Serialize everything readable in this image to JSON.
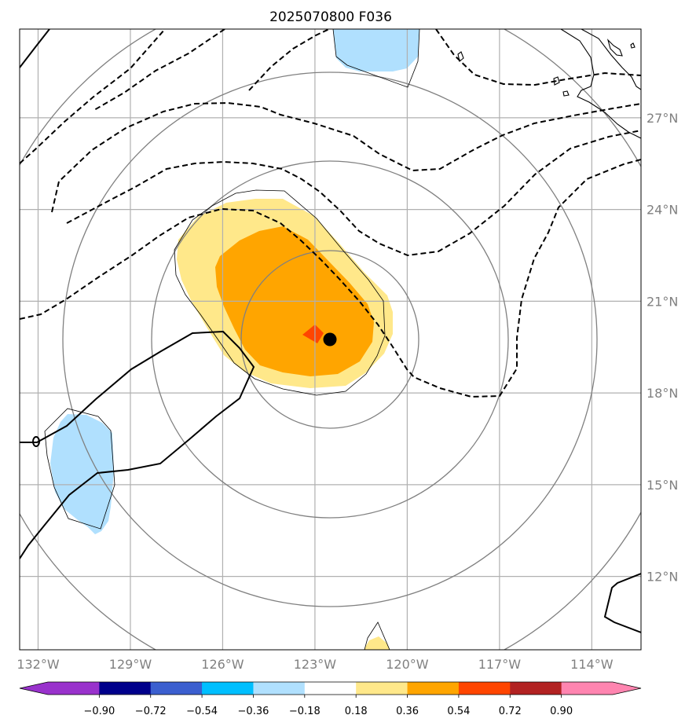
{
  "title": "2025070800 F036",
  "map": {
    "lon_range": [
      -132.6,
      -112.4
    ],
    "lat_range": [
      9.6,
      29.9
    ],
    "lon_ticks": [
      {
        "value": -132,
        "label": "132°W"
      },
      {
        "value": -129,
        "label": "129°W"
      },
      {
        "value": -126,
        "label": "126°W"
      },
      {
        "value": -123,
        "label": "123°W"
      },
      {
        "value": -120,
        "label": "120°W"
      },
      {
        "value": -117,
        "label": "117°W"
      },
      {
        "value": -114,
        "label": "114°W"
      }
    ],
    "lat_ticks": [
      {
        "value": 12,
        "label": "12°N"
      },
      {
        "value": 15,
        "label": "15°N"
      },
      {
        "value": 18,
        "label": "18°N"
      },
      {
        "value": 21,
        "label": "21°N"
      },
      {
        "value": 24,
        "label": "24°N"
      },
      {
        "value": 27,
        "label": "27°N"
      }
    ],
    "grid": true,
    "storm_center": {
      "lon": -122.6,
      "lat": 19.9
    },
    "colors": {
      "grid": "#b0b0b0",
      "range_rings": "#808080",
      "contours": "#000000",
      "center_marker": "#000000"
    }
  },
  "colorbar": {
    "levels": [
      "-0.90",
      "-0.72",
      "-0.54",
      "-0.36",
      "-0.18",
      "0.18",
      "0.36",
      "0.54",
      "0.72",
      "0.90"
    ],
    "colors": [
      "#9932cc",
      "#00008b",
      "#3b5fcf",
      "#00bfff",
      "#b0e0fe",
      "#ffffff",
      "#ffe88a",
      "#ffa500",
      "#ff4500",
      "#b22222",
      "#ff85b0"
    ],
    "extend": "both"
  }
}
